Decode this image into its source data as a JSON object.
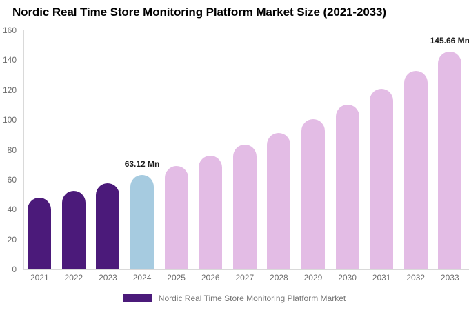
{
  "title": "Nordic Real Time Store Monitoring Platform Market Size (2021-2033)",
  "legend": {
    "label": "Nordic Real Time Store Monitoring Platform Market",
    "swatch_color": "#4b1a7a"
  },
  "axis": {
    "line_color": "#d9d9d9",
    "tick_color": "#6e6e6e"
  },
  "chart_data": {
    "type": "bar",
    "title": "Nordic Real Time Store Monitoring Platform Market Size (2021-2033)",
    "xlabel": "",
    "ylabel": "",
    "unit": "Mn",
    "categories": [
      "2021",
      "2022",
      "2023",
      "2024",
      "2025",
      "2026",
      "2027",
      "2028",
      "2029",
      "2030",
      "2031",
      "2032",
      "2033"
    ],
    "values": [
      47.8,
      52.4,
      57.5,
      63.12,
      69.3,
      76.0,
      83.4,
      91.5,
      100.5,
      110.3,
      121.0,
      132.8,
      145.66
    ],
    "bar_colors": [
      "#4b1a7a",
      "#4b1a7a",
      "#4b1a7a",
      "#a6cbe0",
      "#e3bce5",
      "#e3bce5",
      "#e3bce5",
      "#e3bce5",
      "#e3bce5",
      "#e3bce5",
      "#e3bce5",
      "#e3bce5",
      "#e3bce5"
    ],
    "color_roles": {
      "historical": "#4b1a7a",
      "base_year": "#a6cbe0",
      "forecast": "#e3bce5"
    },
    "ylim": [
      0,
      160
    ],
    "yticks": [
      0,
      20,
      40,
      60,
      80,
      100,
      120,
      140,
      160
    ],
    "grid": false,
    "legend_position": "bottom",
    "annotations": [
      {
        "category": "2024",
        "label": "63.12 Mn"
      },
      {
        "category": "2033",
        "label": "145.66 Mn"
      }
    ]
  }
}
